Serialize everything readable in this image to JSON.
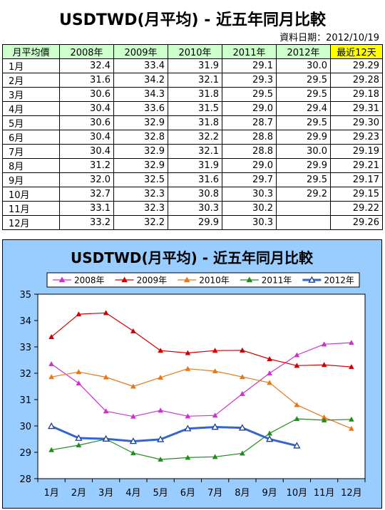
{
  "title": "USDTWD(月平均) - 近五年同月比較",
  "date_label": "資料日期：2012/10/19",
  "table": {
    "headers": [
      "月平均價",
      "2008年",
      "2009年",
      "2010年",
      "2011年",
      "2012年",
      "最近12天"
    ],
    "rows": [
      [
        "1月",
        "32.4",
        "33.4",
        "31.9",
        "29.1",
        "30.0",
        "29.29"
      ],
      [
        "2月",
        "31.6",
        "34.2",
        "32.1",
        "29.3",
        "29.5",
        "29.28"
      ],
      [
        "3月",
        "30.6",
        "34.3",
        "31.8",
        "29.5",
        "29.5",
        "29.18"
      ],
      [
        "4月",
        "30.4",
        "33.6",
        "31.5",
        "29.0",
        "29.4",
        "29.31"
      ],
      [
        "5月",
        "30.6",
        "32.9",
        "31.8",
        "28.7",
        "29.5",
        "29.30"
      ],
      [
        "6月",
        "30.4",
        "32.8",
        "32.2",
        "28.8",
        "29.9",
        "29.23"
      ],
      [
        "7月",
        "30.4",
        "32.9",
        "32.1",
        "28.8",
        "30.0",
        "29.19"
      ],
      [
        "8月",
        "31.2",
        "32.9",
        "31.9",
        "29.0",
        "29.9",
        "29.21"
      ],
      [
        "9月",
        "32.0",
        "32.5",
        "31.6",
        "29.7",
        "29.5",
        "29.17"
      ],
      [
        "10月",
        "32.7",
        "32.3",
        "30.8",
        "30.3",
        "29.2",
        "29.15"
      ],
      [
        "11月",
        "33.1",
        "32.3",
        "30.3",
        "30.2",
        "",
        "29.22"
      ],
      [
        "12月",
        "33.2",
        "32.2",
        "29.9",
        "30.3",
        "",
        "29.26"
      ]
    ]
  },
  "chart_data": {
    "type": "line",
    "title": "USDTWD(月平均) - 近五年同月比較",
    "categories": [
      "1月",
      "2月",
      "3月",
      "4月",
      "5月",
      "6月",
      "7月",
      "8月",
      "9月",
      "10月",
      "11月",
      "12月"
    ],
    "ylim": [
      28,
      35
    ],
    "yticks": [
      "28",
      "29",
      "30",
      "31",
      "32",
      "33",
      "34",
      "35"
    ],
    "grid": false,
    "legend": "top",
    "series": [
      {
        "name": "2008年",
        "color": "#cc33cc",
        "marker": "triangle",
        "values": [
          32.35,
          31.62,
          30.56,
          30.36,
          30.59,
          30.37,
          30.4,
          31.22,
          32.0,
          32.69,
          33.1,
          33.16
        ]
      },
      {
        "name": "2009年",
        "color": "#cc0000",
        "marker": "triangle",
        "values": [
          33.38,
          34.24,
          34.29,
          33.6,
          32.86,
          32.77,
          32.86,
          32.87,
          32.54,
          32.29,
          32.32,
          32.24
        ]
      },
      {
        "name": "2010年",
        "color": "#e67817",
        "marker": "triangle",
        "values": [
          31.86,
          32.05,
          31.85,
          31.5,
          31.84,
          32.17,
          32.08,
          31.86,
          31.64,
          30.8,
          30.33,
          29.9
        ]
      },
      {
        "name": "2011年",
        "color": "#228b22",
        "marker": "triangle",
        "values": [
          29.09,
          29.27,
          29.5,
          28.97,
          28.73,
          28.8,
          28.83,
          28.96,
          29.72,
          30.27,
          30.22,
          30.25
        ]
      },
      {
        "name": "2012年",
        "color": "#3366cc",
        "marker": "open-triangle",
        "values": [
          29.99,
          29.54,
          29.51,
          29.42,
          29.49,
          29.9,
          29.96,
          29.93,
          29.5,
          29.25,
          null,
          null
        ]
      }
    ]
  }
}
